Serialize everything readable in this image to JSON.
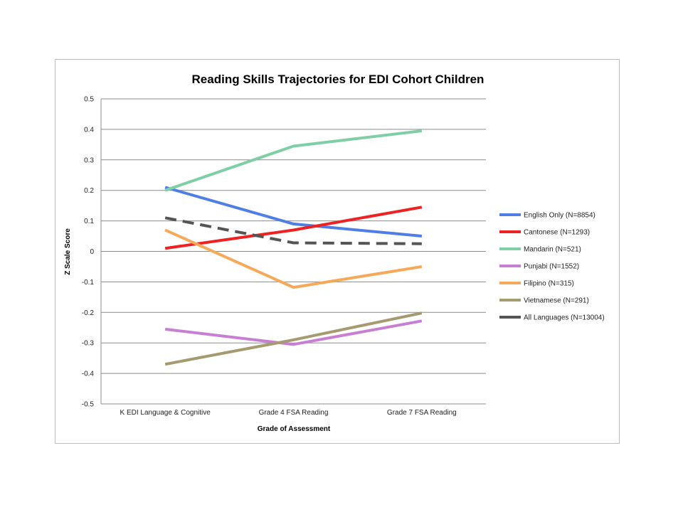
{
  "chart_data": {
    "type": "line",
    "title": "Reading Skills Trajectories for EDI Cohort Children",
    "xlabel": "Grade of Assessment",
    "ylabel": "Z Scale Score",
    "categories": [
      "K EDI Language & Cognitive",
      "Grade 4 FSA Reading",
      "Grade 7 FSA Reading"
    ],
    "ylim": [
      -0.5,
      0.5
    ],
    "yticks": [
      "0.5",
      "0.4",
      "0.3",
      "0.2",
      "0.1",
      "0",
      "-0.1",
      "-0.2",
      "-0.3",
      "-0.4",
      "-0.5"
    ],
    "grid": true,
    "legend_position": "right",
    "series": [
      {
        "name": "English Only (N=8854)",
        "values": [
          0.21,
          0.09,
          0.05
        ],
        "color": "#4f7fe6",
        "dash": false
      },
      {
        "name": "Cantonese (N=1293)",
        "values": [
          0.01,
          0.07,
          0.145
        ],
        "color": "#ee2222",
        "dash": false
      },
      {
        "name": "Mandarin (N=521)",
        "values": [
          0.2,
          0.345,
          0.395
        ],
        "color": "#7ecfa5",
        "dash": false
      },
      {
        "name": "Punjabi (N=1552)",
        "values": [
          -0.255,
          -0.305,
          -0.228
        ],
        "color": "#c77fd4",
        "dash": false
      },
      {
        "name": "Filipino (N=315)",
        "values": [
          0.07,
          -0.118,
          -0.05
        ],
        "color": "#f7a95a",
        "dash": false
      },
      {
        "name": "Vietnamese (N=291)",
        "values": [
          -0.37,
          -0.29,
          -0.202
        ],
        "color": "#a69a70",
        "dash": false
      },
      {
        "name": "All Languages (N=13004)",
        "values": [
          0.11,
          0.028,
          0.025
        ],
        "color": "#555555",
        "dash": true
      }
    ]
  }
}
